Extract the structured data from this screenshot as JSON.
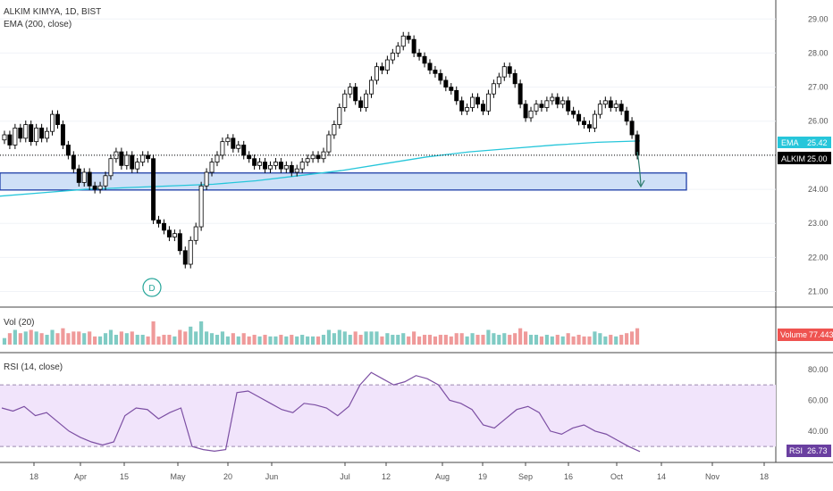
{
  "header": {
    "symbol_line": "ALKIM KIMYA, 1D, BIST",
    "ema_label": "EMA (200, close)",
    "vol_label": "Vol (20)",
    "rsi_label": "RSI (14, close)"
  },
  "price_axis": {
    "ticks": [
      "21.00",
      "22.00",
      "23.00",
      "24.00",
      "25.00",
      "26.00",
      "27.00",
      "28.00",
      "29.00"
    ],
    "tick_values": [
      21,
      22,
      23,
      24,
      25,
      26,
      27,
      28,
      29
    ],
    "range": [
      20.7,
      29.4
    ]
  },
  "tags": {
    "ema_tag": {
      "label": "EMA",
      "value": "25.42",
      "color": "#26c6da"
    },
    "price_tag": {
      "label": "ALKIM",
      "value": "25.00",
      "color": "#000000"
    },
    "volume_tag": {
      "label": "Volume",
      "value": "77.443K",
      "color": "#ef5350"
    },
    "rsi_tag": {
      "label": "RSI",
      "value": "26.73",
      "color": "#6a3fa0"
    }
  },
  "rsi_axis": {
    "ticks": [
      "40.00",
      "60.00",
      "80.00"
    ],
    "tick_values": [
      40,
      60,
      80
    ],
    "range": [
      22,
      88
    ],
    "bands": [
      30,
      70
    ]
  },
  "time_axis": {
    "ticks": [
      "18",
      "Apr",
      "15",
      "May",
      "20",
      "Jun",
      "Jul",
      "12",
      "Aug",
      "19",
      "Sep",
      "16",
      "Oct",
      "14",
      "Nov",
      "18"
    ]
  },
  "dividend_marker": "D",
  "colors": {
    "up": "#ffffff",
    "down": "#000000",
    "ema": "#26c6da",
    "zone": "#cfe0f7",
    "zone_border": "#1f3fa8",
    "rsi_line": "#7c4fa3",
    "rsi_band": "#f1e4fb",
    "vol_up": "#80cbc4",
    "vol_down": "#ef9a9a"
  },
  "chart_data": {
    "type": "candlestick",
    "closes": [
      25.6,
      25.3,
      25.8,
      25.5,
      25.9,
      25.4,
      25.8,
      25.5,
      25.7,
      26.2,
      25.9,
      25.3,
      25.0,
      24.6,
      24.2,
      24.5,
      24.1,
      24.0,
      24.1,
      24.4,
      24.9,
      25.1,
      24.7,
      25.0,
      24.6,
      24.8,
      25.0,
      24.9,
      23.1,
      23.0,
      22.8,
      22.6,
      22.7,
      22.2,
      21.8,
      22.5,
      22.9,
      24.1,
      24.5,
      24.8,
      25.0,
      25.4,
      25.5,
      25.2,
      25.3,
      25.0,
      24.9,
      24.7,
      24.8,
      24.6,
      24.7,
      24.8,
      24.6,
      24.7,
      24.5,
      24.6,
      24.8,
      24.9,
      25.0,
      24.9,
      25.1,
      25.6,
      25.9,
      26.4,
      26.8,
      27.0,
      26.6,
      26.4,
      26.8,
      27.2,
      27.6,
      27.5,
      27.8,
      28.0,
      28.2,
      28.5,
      28.4,
      28.0,
      27.9,
      27.7,
      27.5,
      27.4,
      27.2,
      27.0,
      26.9,
      26.6,
      26.3,
      26.4,
      26.7,
      26.5,
      26.3,
      26.8,
      27.1,
      27.3,
      27.6,
      27.4,
      27.1,
      26.5,
      26.1,
      26.3,
      26.5,
      26.4,
      26.6,
      26.7,
      26.5,
      26.6,
      26.3,
      26.2,
      26.0,
      25.9,
      25.8,
      26.2,
      26.5,
      26.6,
      26.4,
      26.5,
      26.3,
      26.0,
      25.6,
      25.0
    ],
    "ema_values": [
      23.8,
      23.9,
      24.0,
      24.05,
      24.1,
      24.15,
      24.25,
      24.4,
      24.55,
      24.75,
      24.95,
      25.1,
      25.2,
      25.3,
      25.38,
      25.42
    ],
    "support_zone": [
      23.98,
      24.48
    ],
    "last_close": 25.0,
    "volume_label": "77.443K",
    "rsi_values": [
      55,
      53,
      56,
      50,
      52,
      46,
      40,
      36,
      33,
      31,
      33,
      50,
      55,
      54,
      48,
      52,
      55,
      30,
      28,
      27,
      28,
      65,
      66,
      62,
      58,
      54,
      52,
      58,
      57,
      55,
      50,
      56,
      70,
      78,
      74,
      70,
      72,
      76,
      74,
      70,
      60,
      58,
      54,
      44,
      42,
      48,
      54,
      56,
      52,
      40,
      38,
      42,
      44,
      40,
      38,
      34,
      30,
      26.73
    ],
    "rsi_bands": [
      30,
      70
    ],
    "x_ticks": [
      "18",
      "Apr",
      "15",
      "May",
      "20",
      "Jun",
      "Jul",
      "12",
      "Aug",
      "19",
      "Sep",
      "16",
      "Oct",
      "14",
      "Nov",
      "18"
    ]
  }
}
